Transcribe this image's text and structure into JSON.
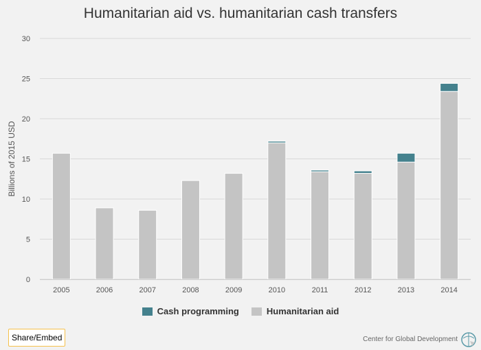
{
  "chart_data": {
    "type": "bar",
    "stacked": true,
    "title": "Humanitarian aid vs. humanitarian cash transfers",
    "xlabel": "",
    "ylabel": "Billions of 2015 USD",
    "ylim": [
      0,
      30
    ],
    "yticks": [
      "0",
      "5",
      "10",
      "15",
      "20",
      "25",
      "30"
    ],
    "grid": true,
    "legend_position": "bottom",
    "categories": [
      "2005",
      "2006",
      "2007",
      "2008",
      "2009",
      "2010",
      "2011",
      "2012",
      "2013",
      "2014"
    ],
    "series": [
      {
        "name": "Humanitarian aid",
        "color": "#c4c4c4",
        "values": [
          15.7,
          8.9,
          8.6,
          12.3,
          13.2,
          17.0,
          13.4,
          13.2,
          14.6,
          23.4
        ]
      },
      {
        "name": "Cash programming",
        "color": "#44818d",
        "values": [
          0,
          0,
          0,
          0,
          0,
          0.2,
          0.2,
          0.3,
          1.1,
          1.0
        ]
      }
    ]
  },
  "ui": {
    "share_label": "Share/Embed",
    "credit": "Center for Global Development"
  }
}
